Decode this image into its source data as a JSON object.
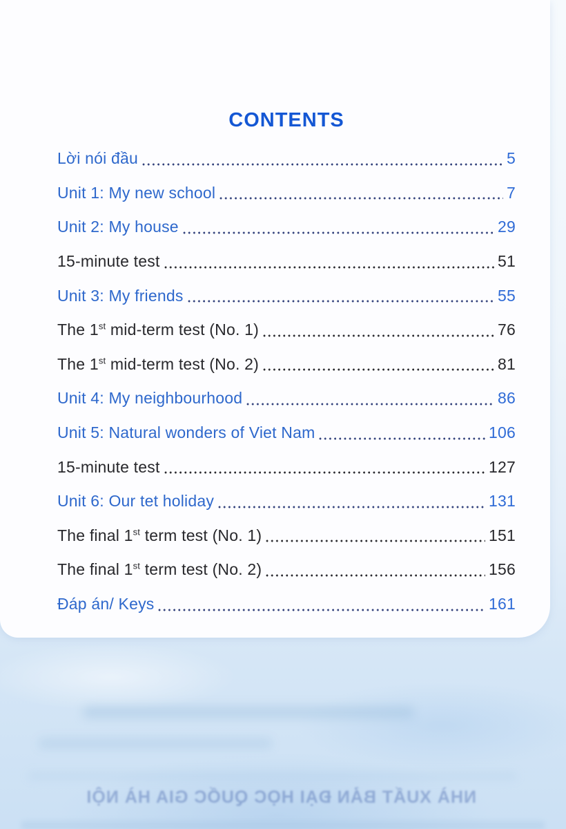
{
  "page": {
    "title": "CONTENTS",
    "colors": {
      "title": "#1457d4",
      "link": "#2e68cc",
      "link_num": "#2f6bd6",
      "dark": "#28282c",
      "dot_blue": "#33427c",
      "dot_dark": "#2b2b30",
      "card_bg": "#fdfdff",
      "bg_top": "#f6fafd",
      "bg_bottom": "#cbe0f4"
    },
    "toc": {
      "rows": [
        {
          "pre": "Lời nói đầu",
          "sup": "",
          "post": "",
          "page": "5",
          "style": "blue"
        },
        {
          "pre": "Unit 1: My new school",
          "sup": "",
          "post": "",
          "page": "7",
          "style": "blue"
        },
        {
          "pre": "Unit 2: My house",
          "sup": "",
          "post": "",
          "page": "29",
          "style": "blue"
        },
        {
          "pre": "15-minute test",
          "sup": "",
          "post": "",
          "page": "51",
          "style": "dark"
        },
        {
          "pre": "Unit 3: My friends",
          "sup": "",
          "post": "",
          "page": "55",
          "style": "blue"
        },
        {
          "pre": "The 1",
          "sup": "st",
          "post": " mid-term test (No. 1)",
          "page": "76",
          "style": "dark"
        },
        {
          "pre": "The 1",
          "sup": "st",
          "post": " mid-term test (No. 2)",
          "page": "81",
          "style": "dark"
        },
        {
          "pre": "Unit 4: My neighbourhood",
          "sup": "",
          "post": "",
          "page": "86",
          "style": "blue"
        },
        {
          "pre": "Unit 5: Natural wonders of Viet Nam",
          "sup": "",
          "post": "",
          "page": "106",
          "style": "blue"
        },
        {
          "pre": "15-minute test",
          "sup": "",
          "post": "",
          "page": "127",
          "style": "dark"
        },
        {
          "pre": "Unit 6: Our tet holiday",
          "sup": "",
          "post": "",
          "page": "131",
          "style": "blue"
        },
        {
          "pre": "The final 1",
          "sup": "st",
          "post": " term test (No. 1)",
          "page": "151",
          "style": "dark"
        },
        {
          "pre": "The final 1",
          "sup": "st",
          "post": " term test (No. 2)",
          "page": "156",
          "style": "dark"
        },
        {
          "pre": "Đáp án/ Keys",
          "sup": "",
          "post": "",
          "page": "161",
          "style": "blue"
        }
      ]
    },
    "bleed": {
      "publisher": "NHÀ XUẤT BẢN ĐẠI HỌC QUỐC GIA HÀ NỘI"
    }
  }
}
